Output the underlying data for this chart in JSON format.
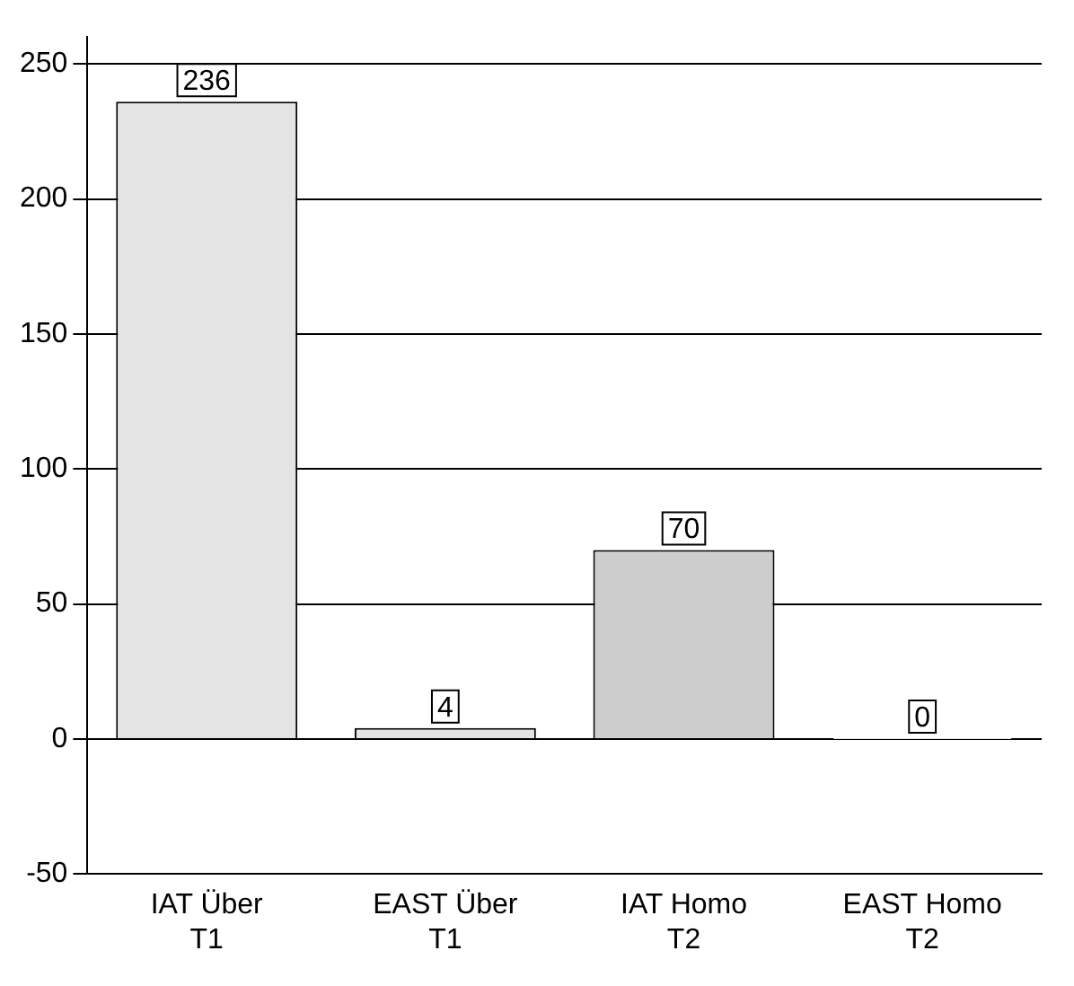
{
  "chart_data": {
    "type": "bar",
    "categories": [
      "IAT Über T1",
      "EAST Über T1",
      "IAT Homo T2",
      "EAST Homo T2"
    ],
    "values": [
      236,
      4,
      70,
      0
    ],
    "colors": [
      "#e4e4e4",
      "#e4e4e4",
      "#cdcdcd",
      "#e4e4e4"
    ],
    "ylim": [
      -50,
      260
    ],
    "yticks": [
      -50,
      0,
      50,
      100,
      150,
      200,
      250
    ],
    "grid": "y",
    "data_labels": true,
    "legend": false
  }
}
